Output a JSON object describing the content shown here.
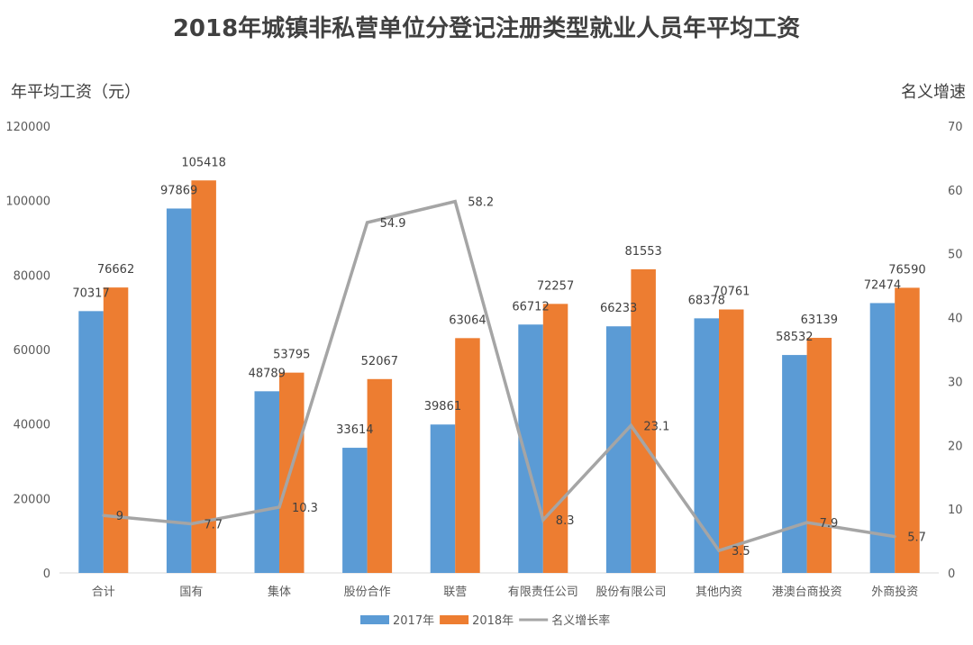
{
  "chart_data": {
    "type": "bar",
    "title": "2018年城镇非私营单位分登记注册类型就业人员年平均工资",
    "ylabel": "年平均工资（元）",
    "y2label": "名义增速",
    "ylim": [
      0,
      120000
    ],
    "yticks": [
      0,
      20000,
      40000,
      60000,
      80000,
      100000,
      120000
    ],
    "y2lim": [
      0,
      70
    ],
    "y2ticks": [
      0,
      10,
      20,
      30,
      40,
      50,
      60,
      70
    ],
    "grid": false,
    "legend_position": "bottom",
    "categories": [
      "合计",
      "国有",
      "集体",
      "股份合作",
      "联营",
      "有限责任公司",
      "股份有限公司",
      "其他内资",
      "港澳台商投资",
      "外商投资"
    ],
    "series": [
      {
        "name": "2017年",
        "type": "bar",
        "axis": "left",
        "color": "#5B9BD5",
        "values": [
          70317,
          97869,
          48789,
          33614,
          39861,
          66712,
          66233,
          68378,
          58532,
          72474
        ]
      },
      {
        "name": "2018年",
        "type": "bar",
        "axis": "left",
        "color": "#ED7D31",
        "values": [
          76662,
          105418,
          53795,
          52067,
          63064,
          72257,
          81553,
          70761,
          63139,
          76590
        ]
      },
      {
        "name": "名义增长率",
        "type": "line",
        "axis": "right",
        "color": "#A5A5A5",
        "values": [
          9,
          7.7,
          10.3,
          54.9,
          58.2,
          8.3,
          23.1,
          3.5,
          7.9,
          5.7
        ]
      }
    ]
  }
}
